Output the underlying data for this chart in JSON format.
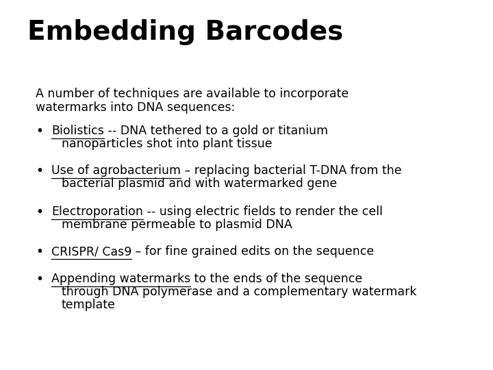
{
  "title": "Embedding Barcodes",
  "background_color": "#ffffff",
  "title_fontsize": 28,
  "title_fontweight": "bold",
  "body_fontsize": 12.5,
  "body_font": "DejaVu Sans",
  "intro_lines": [
    "A number of techniques are available to incorporate",
    "watermarks into DNA sequences:"
  ],
  "bullets": [
    {
      "underlined": "Biolistics",
      "rest": " -- DNA tethered to a gold or titanium",
      "line2": "nanoparticles shot into plant tissue"
    },
    {
      "underlined": "Use of agrobacterium",
      "rest": " – replacing bacterial T-DNA from the",
      "line2": "bacterial plasmid and with watermarked gene"
    },
    {
      "underlined": "Electroporation",
      "rest": " -- using electric fields to render the cell",
      "line2": "membrane permeable to plasmid DNA"
    },
    {
      "underlined": "CRISPR/ Cas9",
      "rest": " – for fine grained edits on the sequence",
      "line2": ""
    },
    {
      "underlined": "Appending watermarks",
      "rest": " to the ends of the sequence",
      "line2": "through DNA polymerase and a complementary watermark",
      "line3": "template"
    }
  ]
}
